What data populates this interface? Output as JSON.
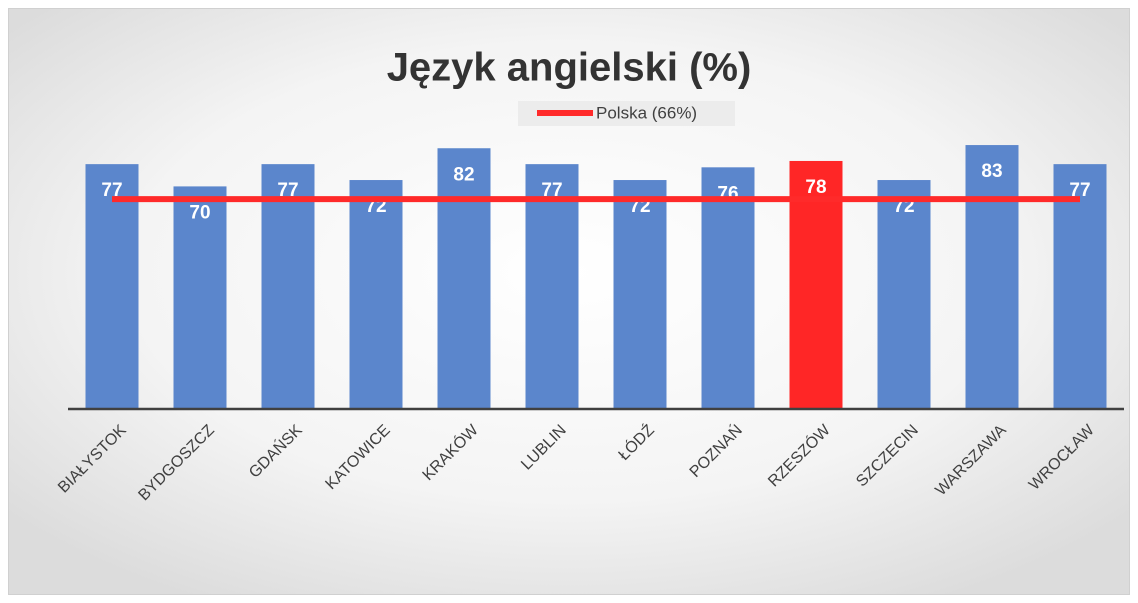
{
  "chart_data": {
    "type": "bar",
    "title": "Język angielski (%)",
    "categories": [
      "BIAŁYSTOK",
      "BYDGOSZCZ",
      "GDAŃSK",
      "KATOWICE",
      "KRAKÓW",
      "LUBLIN",
      "ŁÓDŹ",
      "POZNAŃ",
      "RZESZÓW",
      "SZCZECIN",
      "WARSZAWA",
      "WROCŁAW"
    ],
    "values": [
      77,
      70,
      77,
      72,
      82,
      77,
      72,
      76,
      78,
      72,
      83,
      77
    ],
    "colors": [
      "#5b86cc",
      "#5b86cc",
      "#5b86cc",
      "#5b86cc",
      "#5b86cc",
      "#5b86cc",
      "#5b86cc",
      "#5b86cc",
      "#ff2626",
      "#5b86cc",
      "#5b86cc",
      "#5b86cc"
    ],
    "ylim": [
      0,
      100
    ],
    "reference": {
      "name": "Polska (66%)",
      "value": 66,
      "color": "#ff2a2a"
    }
  }
}
